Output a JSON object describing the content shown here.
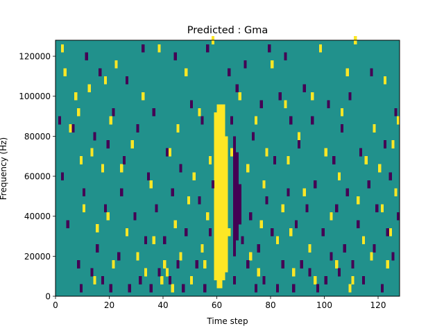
{
  "chart_data": {
    "type": "heatmap",
    "title": "Predicted : Gma",
    "xlabel": "Time step",
    "ylabel": "Frequency (Hz)",
    "xlim": [
      0,
      128
    ],
    "ylim": [
      0,
      128000
    ],
    "x_ticks": [
      0,
      20,
      40,
      60,
      80,
      100,
      120
    ],
    "y_ticks": [
      0,
      20000,
      40000,
      60000,
      80000,
      100000,
      120000
    ],
    "n_cols": 128,
    "n_rows": 32,
    "colors": {
      "background": "#21918c",
      "high": "#fde725",
      "low": "#440154"
    },
    "ridge_columns": [
      {
        "x": 59,
        "start": 8000,
        "end": 92000
      },
      {
        "x": 60,
        "start": 4000,
        "end": 96000
      },
      {
        "x": 61,
        "start": 4000,
        "end": 96000
      },
      {
        "x": 62,
        "start": 8000,
        "end": 96000
      },
      {
        "x": 63,
        "start": 12000,
        "end": 80000
      }
    ],
    "dark_band": [
      {
        "x": 66,
        "start": 20000,
        "end": 80000
      },
      {
        "x": 67,
        "start": 28000,
        "end": 72000
      },
      {
        "x": 68,
        "start": 36000,
        "end": 56000
      }
    ],
    "high_cells": [
      [
        2,
        122000
      ],
      [
        3,
        110000
      ],
      [
        5,
        82000
      ],
      [
        7,
        98000
      ],
      [
        8,
        90000
      ],
      [
        9,
        66000
      ],
      [
        10,
        42000
      ],
      [
        12,
        102000
      ],
      [
        13,
        70000
      ],
      [
        14,
        6000
      ],
      [
        15,
        32000
      ],
      [
        17,
        62000
      ],
      [
        18,
        106000
      ],
      [
        19,
        38000
      ],
      [
        20,
        86000
      ],
      [
        21,
        14000
      ],
      [
        22,
        114000
      ],
      [
        24,
        62000
      ],
      [
        26,
        30000
      ],
      [
        28,
        74000
      ],
      [
        30,
        18000
      ],
      [
        32,
        98000
      ],
      [
        33,
        10000
      ],
      [
        35,
        54000
      ],
      [
        36,
        26000
      ],
      [
        38,
        122000
      ],
      [
        39,
        6000
      ],
      [
        40,
        14000
      ],
      [
        41,
        10000
      ],
      [
        42,
        70000
      ],
      [
        43,
        2000
      ],
      [
        44,
        34000
      ],
      [
        45,
        82000
      ],
      [
        46,
        18000
      ],
      [
        48,
        110000
      ],
      [
        49,
        46000
      ],
      [
        50,
        6000
      ],
      [
        51,
        58000
      ],
      [
        53,
        90000
      ],
      [
        54,
        22000
      ],
      [
        55,
        14000
      ],
      [
        56,
        38000
      ],
      [
        57,
        66000
      ],
      [
        58,
        126000
      ],
      [
        64,
        30000
      ],
      [
        65,
        70000
      ],
      [
        68,
        98000
      ],
      [
        71,
        62000
      ],
      [
        72,
        18000
      ],
      [
        74,
        86000
      ],
      [
        75,
        10000
      ],
      [
        76,
        34000
      ],
      [
        77,
        54000
      ],
      [
        78,
        70000
      ],
      [
        80,
        114000
      ],
      [
        82,
        26000
      ],
      [
        84,
        42000
      ],
      [
        85,
        94000
      ],
      [
        86,
        66000
      ],
      [
        87,
        30000
      ],
      [
        88,
        10000
      ],
      [
        90,
        78000
      ],
      [
        92,
        50000
      ],
      [
        94,
        22000
      ],
      [
        95,
        98000
      ],
      [
        96,
        6000
      ],
      [
        98,
        122000
      ],
      [
        100,
        70000
      ],
      [
        102,
        38000
      ],
      [
        104,
        14000
      ],
      [
        105,
        58000
      ],
      [
        106,
        90000
      ],
      [
        108,
        110000
      ],
      [
        109,
        2000
      ],
      [
        110,
        6000
      ],
      [
        111,
        126000
      ],
      [
        112,
        46000
      ],
      [
        114,
        26000
      ],
      [
        115,
        66000
      ],
      [
        117,
        18000
      ],
      [
        118,
        82000
      ],
      [
        120,
        62000
      ],
      [
        121,
        42000
      ],
      [
        122,
        106000
      ],
      [
        123,
        14000
      ],
      [
        124,
        30000
      ],
      [
        125,
        74000
      ],
      [
        126,
        50000
      ],
      [
        127,
        86000
      ]
    ],
    "low_cells": [
      [
        1,
        86000
      ],
      [
        2,
        58000
      ],
      [
        4,
        34000
      ],
      [
        6,
        82000
      ],
      [
        8,
        14000
      ],
      [
        9,
        2000
      ],
      [
        10,
        50000
      ],
      [
        11,
        118000
      ],
      [
        13,
        10000
      ],
      [
        14,
        78000
      ],
      [
        15,
        22000
      ],
      [
        16,
        110000
      ],
      [
        17,
        6000
      ],
      [
        18,
        42000
      ],
      [
        19,
        74000
      ],
      [
        20,
        2000
      ],
      [
        21,
        90000
      ],
      [
        23,
        18000
      ],
      [
        24,
        50000
      ],
      [
        25,
        66000
      ],
      [
        26,
        106000
      ],
      [
        27,
        2000
      ],
      [
        29,
        38000
      ],
      [
        30,
        82000
      ],
      [
        31,
        6000
      ],
      [
        32,
        122000
      ],
      [
        33,
        26000
      ],
      [
        34,
        58000
      ],
      [
        35,
        2000
      ],
      [
        36,
        90000
      ],
      [
        37,
        42000
      ],
      [
        38,
        10000
      ],
      [
        40,
        26000
      ],
      [
        41,
        70000
      ],
      [
        42,
        6000
      ],
      [
        43,
        50000
      ],
      [
        44,
        118000
      ],
      [
        45,
        14000
      ],
      [
        46,
        62000
      ],
      [
        47,
        2000
      ],
      [
        48,
        30000
      ],
      [
        50,
        94000
      ],
      [
        52,
        14000
      ],
      [
        53,
        46000
      ],
      [
        54,
        86000
      ],
      [
        55,
        2000
      ],
      [
        56,
        122000
      ],
      [
        57,
        30000
      ],
      [
        58,
        54000
      ],
      [
        64,
        110000
      ],
      [
        65,
        86000
      ],
      [
        66,
        6000
      ],
      [
        67,
        102000
      ],
      [
        69,
        26000
      ],
      [
        70,
        114000
      ],
      [
        71,
        14000
      ],
      [
        72,
        38000
      ],
      [
        73,
        78000
      ],
      [
        74,
        2000
      ],
      [
        75,
        22000
      ],
      [
        76,
        94000
      ],
      [
        77,
        6000
      ],
      [
        78,
        46000
      ],
      [
        79,
        122000
      ],
      [
        80,
        30000
      ],
      [
        81,
        66000
      ],
      [
        82,
        2000
      ],
      [
        83,
        98000
      ],
      [
        84,
        14000
      ],
      [
        85,
        118000
      ],
      [
        86,
        50000
      ],
      [
        87,
        86000
      ],
      [
        88,
        2000
      ],
      [
        89,
        34000
      ],
      [
        90,
        74000
      ],
      [
        91,
        14000
      ],
      [
        92,
        102000
      ],
      [
        93,
        42000
      ],
      [
        94,
        10000
      ],
      [
        95,
        86000
      ],
      [
        96,
        54000
      ],
      [
        97,
        2000
      ],
      [
        99,
        30000
      ],
      [
        100,
        6000
      ],
      [
        101,
        94000
      ],
      [
        102,
        18000
      ],
      [
        103,
        66000
      ],
      [
        104,
        42000
      ],
      [
        105,
        10000
      ],
      [
        106,
        82000
      ],
      [
        107,
        22000
      ],
      [
        108,
        50000
      ],
      [
        109,
        98000
      ],
      [
        110,
        14000
      ],
      [
        112,
        34000
      ],
      [
        113,
        70000
      ],
      [
        114,
        6000
      ],
      [
        116,
        54000
      ],
      [
        117,
        110000
      ],
      [
        118,
        22000
      ],
      [
        119,
        42000
      ],
      [
        121,
        2000
      ],
      [
        122,
        74000
      ],
      [
        123,
        30000
      ],
      [
        124,
        58000
      ],
      [
        125,
        18000
      ],
      [
        126,
        90000
      ],
      [
        127,
        38000
      ]
    ]
  }
}
